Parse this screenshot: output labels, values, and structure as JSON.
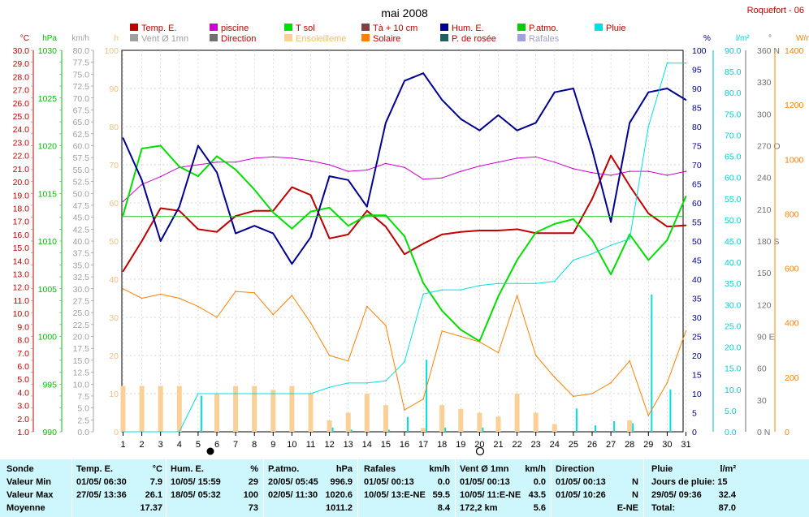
{
  "title": "mai 2008",
  "station": "Roquefort - 06",
  "legend": [
    {
      "label": "Temp. E.",
      "color": "#c00000"
    },
    {
      "label": "piscine",
      "color": "#d000d0"
    },
    {
      "label": "T sol",
      "color": "#00e000"
    },
    {
      "label": "Tà + 10 cm",
      "color": "#804040"
    },
    {
      "label": "Hum. E.",
      "color": "#000090"
    },
    {
      "label": "P.atmo.",
      "color": "#00d000"
    },
    {
      "label": "Pluie",
      "color": "#00e0e0"
    },
    {
      "label": "Vent Ø 1mn",
      "color": "#a0a0a0"
    },
    {
      "label": "Direction",
      "color": "#707070"
    },
    {
      "label": "Ensoleilleme",
      "color": "#f8d098"
    },
    {
      "label": "Solaire",
      "color": "#ff8000"
    },
    {
      "label": "P. de rosée",
      "color": "#206060"
    },
    {
      "label": "Rafales",
      "color": "#a0a0e0"
    }
  ],
  "axes_units": {
    "temp": "°C",
    "press": "hPa",
    "wind": "km/h",
    "sun": "h",
    "hum": "%",
    "rain": "l/m²",
    "dir": "°",
    "sol": "W/m²"
  },
  "chart_data": {
    "type": "line",
    "x": [
      1,
      2,
      3,
      4,
      5,
      6,
      7,
      8,
      9,
      10,
      11,
      12,
      13,
      14,
      15,
      16,
      17,
      18,
      19,
      20,
      21,
      22,
      23,
      24,
      25,
      26,
      27,
      28,
      29,
      30,
      31
    ],
    "axes": {
      "temp_c": {
        "min": 1.0,
        "max": 30.0,
        "step": 1.0
      },
      "pressure_hpa": {
        "min": 990,
        "max": 1030,
        "step": 5
      },
      "wind_kmh": {
        "min": 0.0,
        "max": 80.0,
        "step": 2.5
      },
      "sun_h": {
        "min": 0,
        "max": 100,
        "step": 10
      },
      "humidity_pct": {
        "min": 0,
        "max": 100,
        "step": 5
      },
      "rain_lm2": {
        "min": 0.0,
        "max": 90.0,
        "step": 5.0
      },
      "direction_deg": {
        "min": 0,
        "max": 360,
        "step": 30
      },
      "solar_wm2": {
        "min": 0,
        "max": 1400,
        "step": 200
      }
    },
    "series": [
      {
        "name": "Temp. E.",
        "axis": "temp_c",
        "color": "#c00000",
        "values": [
          13.2,
          15.5,
          18.0,
          17.8,
          16.4,
          16.2,
          17.4,
          17.8,
          17.8,
          19.6,
          19.0,
          15.7,
          16.0,
          17.8,
          16.6,
          14.5,
          15.3,
          16.0,
          16.2,
          16.3,
          16.3,
          16.4,
          16.1,
          16.1,
          16.1,
          18.7,
          22.0,
          19.7,
          17.6,
          16.6,
          16.7
        ]
      },
      {
        "name": "piscine",
        "axis": "temp_c",
        "color": "#d000d0",
        "values": [
          18.5,
          19.8,
          20.4,
          21.1,
          21.3,
          21.5,
          21.5,
          21.8,
          21.9,
          21.8,
          21.6,
          21.3,
          20.8,
          20.9,
          21.4,
          21.1,
          20.2,
          20.3,
          20.8,
          21.2,
          21.5,
          21.8,
          21.9,
          21.5,
          21.0,
          20.7,
          20.5,
          20.8,
          20.8,
          20.5,
          20.8
        ]
      },
      {
        "name": "T sol",
        "axis": "pressure_hpa",
        "color": "#00e000",
        "values": [
          1012.7,
          1019.7,
          1020.0,
          1017.8,
          1016.8,
          1018.9,
          1017.5,
          1015.4,
          1013.0,
          1011.3,
          1013.1,
          1013.5,
          1011.6,
          1012.7,
          1012.7,
          1010.5,
          1005.6,
          1002.7,
          1000.7,
          999.5,
          1004.2,
          1008.0,
          1010.9,
          1011.8,
          1012.3,
          1010.1,
          1006.5,
          1010.7,
          1008.0,
          1010.1,
          1014.7
        ]
      },
      {
        "name": "Hum. E.",
        "axis": "humidity_pct",
        "color": "#000090",
        "values": [
          77,
          66,
          50,
          59,
          75,
          68,
          52,
          54,
          52,
          44,
          51,
          67,
          66,
          59,
          81,
          92,
          94,
          87,
          82,
          79,
          83,
          79,
          81,
          89,
          90,
          74,
          55,
          81,
          89,
          90,
          87
        ]
      },
      {
        "name": "Pluie",
        "axis": "rain_lm2",
        "color": "#00e0e0",
        "values": [
          0.0,
          0.0,
          0.0,
          0.0,
          9.0,
          9.0,
          9.0,
          9.0,
          9.0,
          9.0,
          9.0,
          10.5,
          11.5,
          11.5,
          12.0,
          16.5,
          32.5,
          33.5,
          33.5,
          34.5,
          35.0,
          35.0,
          35.0,
          35.5,
          40.5,
          42.0,
          44.0,
          45.5,
          72.0,
          87.0,
          87.0
        ]
      },
      {
        "name": "Solaire",
        "axis": "solar_wm2",
        "color": "#ff8000",
        "values": [
          525,
          490,
          505,
          490,
          460,
          420,
          515,
          510,
          430,
          500,
          400,
          280,
          260,
          460,
          390,
          80,
          120,
          370,
          350,
          330,
          290,
          500,
          280,
          200,
          130,
          140,
          180,
          260,
          60,
          180,
          370
        ]
      }
    ],
    "bars": [
      {
        "name": "Ensoleilleme",
        "axis": "sun_h",
        "color": "#f8d098",
        "values": [
          12,
          12,
          12,
          12,
          0,
          10,
          12,
          12,
          11,
          12,
          10,
          3,
          5,
          10,
          7,
          0,
          1,
          7,
          6,
          5,
          4,
          10,
          5,
          2,
          0,
          0,
          0,
          3,
          0,
          0,
          0
        ]
      },
      {
        "name": "Pluie",
        "axis": "rain_lm2",
        "color": "#00e0e0",
        "values": [
          0,
          0,
          0,
          0,
          8.5,
          0,
          0,
          0,
          0,
          0,
          0,
          1.0,
          0.5,
          0,
          0.5,
          3.5,
          17.0,
          1.0,
          0,
          1.0,
          0,
          0,
          0,
          0,
          5.5,
          1.5,
          2.5,
          2.0,
          32.4,
          10.0,
          0
        ]
      }
    ]
  },
  "stats": {
    "sonde": {
      "h": "Sonde",
      "min": "Valeur Min",
      "max": "Valeur Max",
      "avg": "Moyenne"
    },
    "temp": {
      "h": "Temp. E.",
      "u": "°C",
      "min_dt": "01/05/ 06:30",
      "min_v": "7.9",
      "max_dt": "27/05/ 13:36",
      "max_v": "26.1",
      "avg": "17.37"
    },
    "hum": {
      "h": "Hum. E.",
      "u": "%",
      "min_dt": "10/05/ 15:59",
      "min_v": "29",
      "max_dt": "18/05/ 05:32",
      "max_v": "100",
      "avg": "73"
    },
    "press": {
      "h": "P.atmo.",
      "u": "hPa",
      "min_dt": "20/05/ 05:45",
      "min_v": "996.9",
      "max_dt": "02/05/ 11:30",
      "max_v": "1020.6",
      "avg": "1011.2"
    },
    "gust": {
      "h": "Rafales",
      "u": "km/h",
      "min_dt": "01/05/ 00:13",
      "min_v": "0.0",
      "max_dt": "10/05/ 13:E-NE",
      "max_v": "59.5",
      "avg": "8.4"
    },
    "wind": {
      "h": "Vent Ø 1mn",
      "u": "km/h",
      "min_dt": "01/05/ 00:13",
      "min_v": "0.0",
      "max_dt": "10/05/ 11:E-NE",
      "max_v": "43.5",
      "avg_l": "172,2 km",
      "avg": "5.6"
    },
    "dir": {
      "h": "Direction",
      "min_dt": "01/05/ 00:13",
      "min_v": "N",
      "max_dt": "01/05/ 10:26",
      "max_v": "N",
      "avg": "E-NE"
    },
    "rain": {
      "h": "Pluie",
      "u": "l/m²",
      "days": "Jours de pluie: 15",
      "max_dt": "29/05/ 09:36",
      "max_v": "32.4",
      "total_l": "Total:",
      "total": "87.0"
    }
  }
}
